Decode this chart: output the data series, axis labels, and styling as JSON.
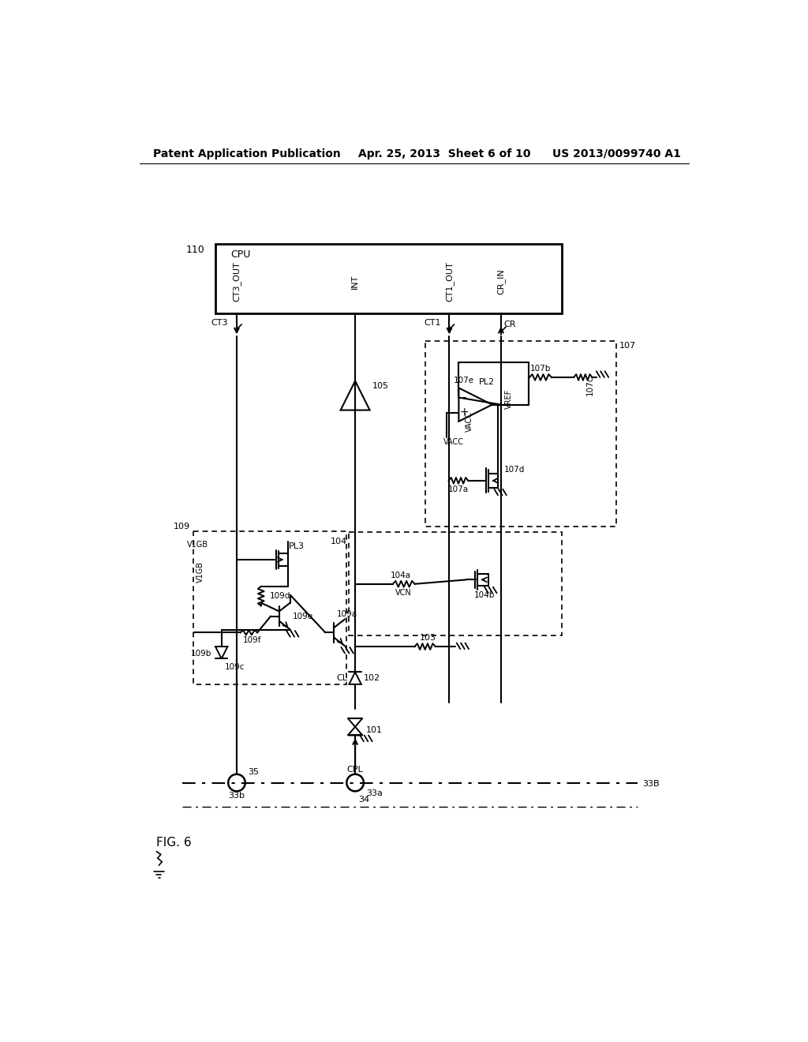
{
  "bg_color": "#ffffff",
  "header_left": "Patent Application Publication",
  "header_center": "Apr. 25, 2013  Sheet 6 of 10",
  "header_right": "US 2013/0099740 A1",
  "fig_label": "FIG. 6",
  "lc": "#000000"
}
